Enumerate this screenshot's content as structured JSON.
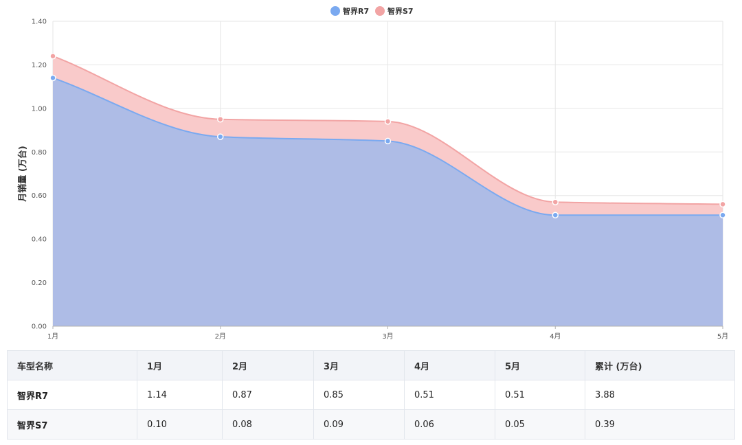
{
  "chart_data": {
    "type": "area",
    "stacked": true,
    "smooth": true,
    "categories": [
      "1月",
      "2月",
      "3月",
      "4月",
      "5月"
    ],
    "series": [
      {
        "name": "智界R7",
        "values": [
          1.14,
          0.87,
          0.85,
          0.51,
          0.51
        ],
        "color": "#7aa9f0",
        "fill": "#aebce6"
      },
      {
        "name": "智界S7",
        "values": [
          0.1,
          0.08,
          0.09,
          0.06,
          0.05
        ],
        "color": "#f2a4a4",
        "fill": "#f9caca"
      }
    ],
    "ylabel": "月销量 (万台)",
    "ylim": [
      0,
      1.4
    ],
    "yticks": [
      "0.00",
      "0.20",
      "0.40",
      "0.60",
      "0.80",
      "1.00",
      "1.20",
      "1.40"
    ],
    "grid": true,
    "legend_position": "top-center"
  },
  "table": {
    "headers": [
      "车型名称",
      "1月",
      "2月",
      "3月",
      "4月",
      "5月",
      "累计 (万台)"
    ],
    "rows": [
      [
        "智界R7",
        "1.14",
        "0.87",
        "0.85",
        "0.51",
        "0.51",
        "3.88"
      ],
      [
        "智界S7",
        "0.10",
        "0.08",
        "0.09",
        "0.06",
        "0.05",
        "0.39"
      ]
    ]
  }
}
